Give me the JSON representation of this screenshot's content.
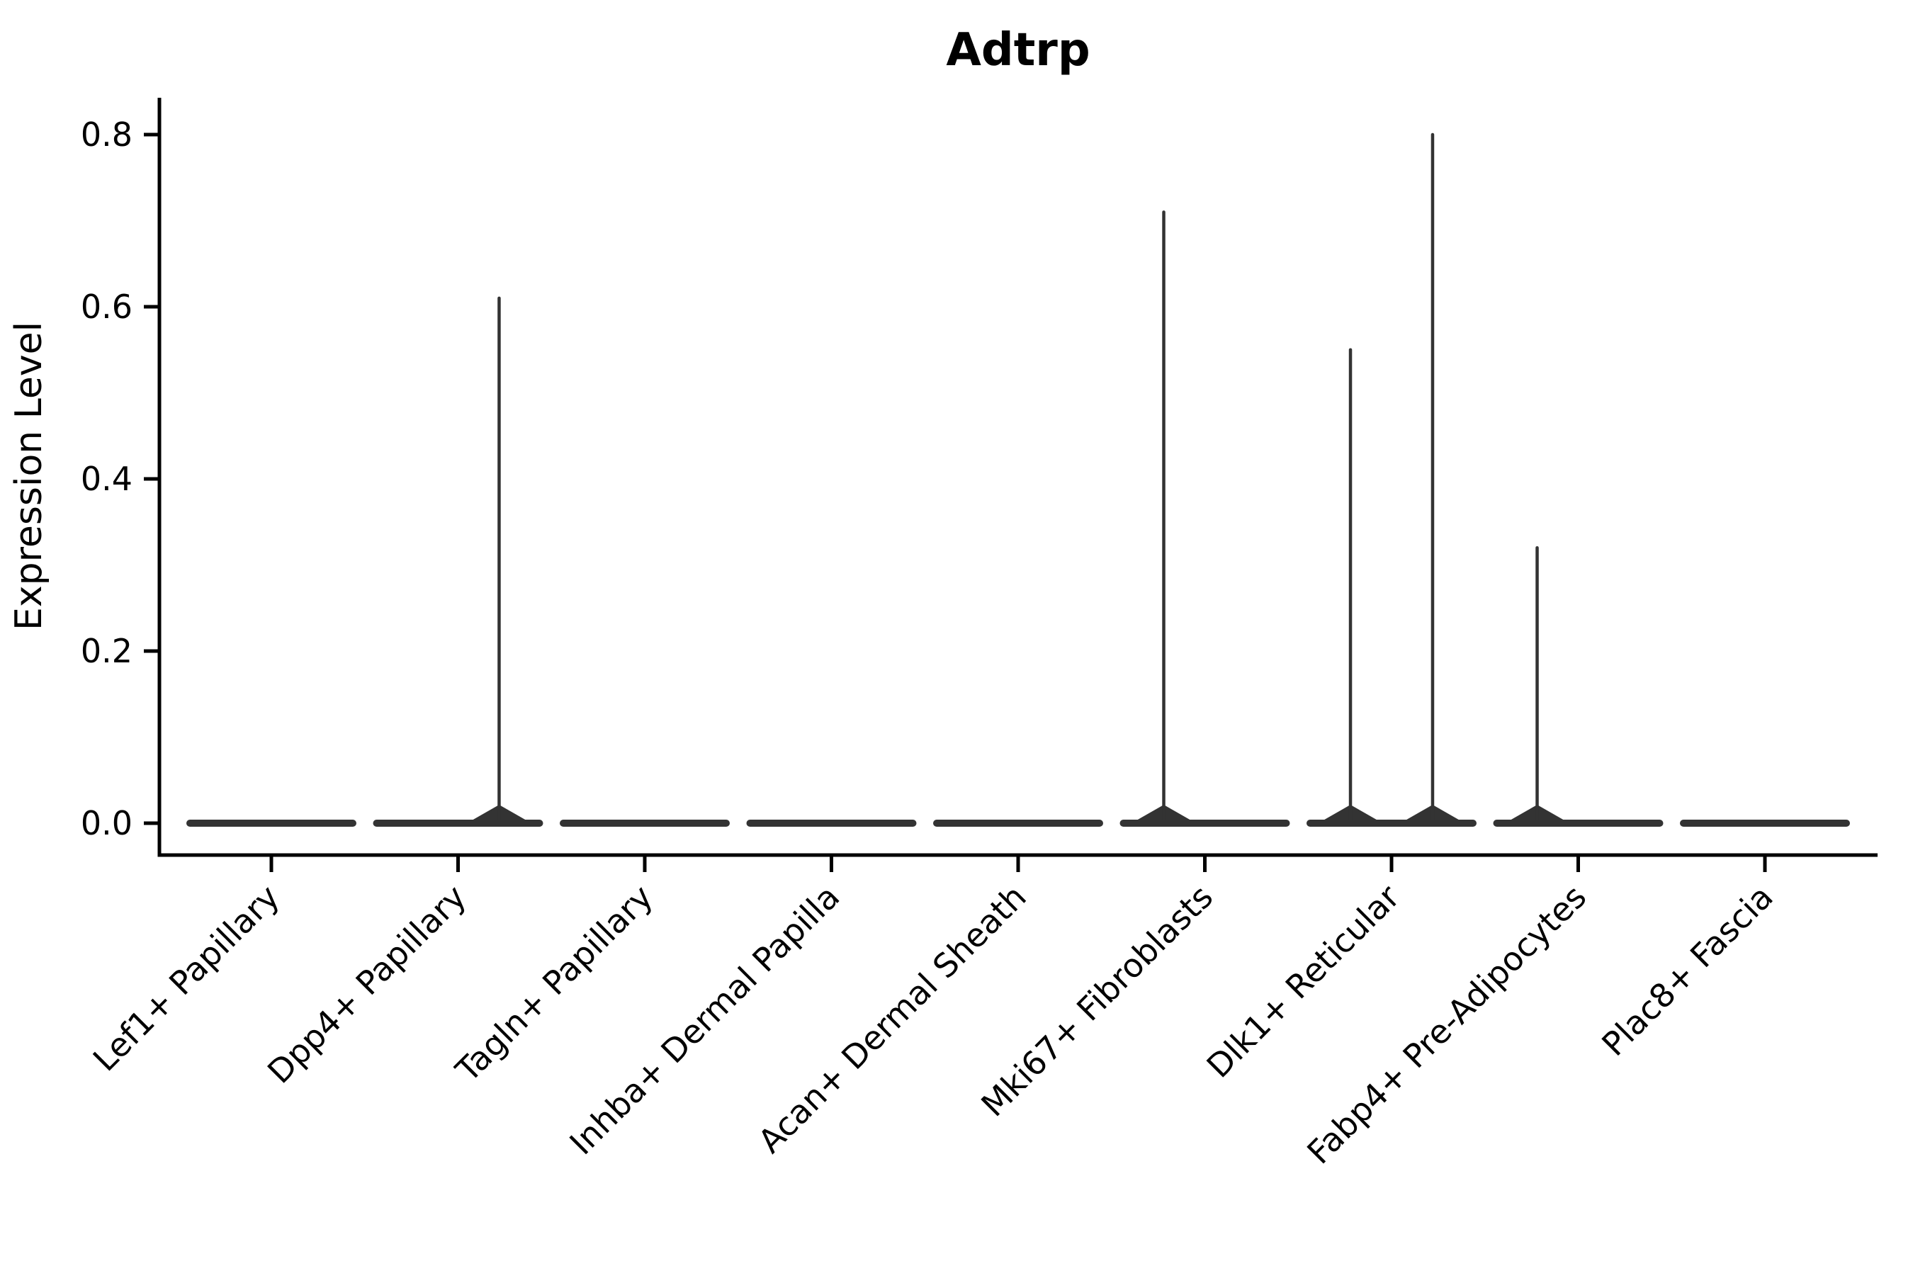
{
  "figure": {
    "background_color": "#ffffff",
    "axis_color": "#000000",
    "violin_color": "#333333",
    "text_color": "#000000"
  },
  "chart_data": {
    "type": "violin",
    "title": "Adtrp",
    "xlabel": "",
    "ylabel": "Expression Level",
    "ylim": [
      -0.04,
      0.84
    ],
    "yticks": [
      0.0,
      0.2,
      0.4,
      0.6,
      0.8
    ],
    "ytick_labels": [
      "0.0",
      "0.2",
      "0.4",
      "0.6",
      "0.8"
    ],
    "grid": "off",
    "legend": "none",
    "categories": [
      "Lef1+ Papillary",
      "Dpp4+ Papillary",
      "Tagln+ Papillary",
      "Inhba+ Dermal Papilla",
      "Acan+ Dermal Sheath",
      "Mki67+ Fibroblasts",
      "Dlk1+ Reticular",
      "Fabp4+ Pre-Adipocytes",
      "Plac8+ Fascia"
    ],
    "violins": [
      {
        "category": "Lef1+ Papillary",
        "base_value": 0.0,
        "spikes": []
      },
      {
        "category": "Dpp4+ Papillary",
        "base_value": 0.0,
        "spikes": [
          {
            "offset_frac": 0.22,
            "max": 0.61
          }
        ]
      },
      {
        "category": "Tagln+ Papillary",
        "base_value": 0.0,
        "spikes": []
      },
      {
        "category": "Inhba+ Dermal Papilla",
        "base_value": 0.0,
        "spikes": []
      },
      {
        "category": "Acan+ Dermal Sheath",
        "base_value": 0.0,
        "spikes": []
      },
      {
        "category": "Mki67+ Fibroblasts",
        "base_value": 0.0,
        "spikes": [
          {
            "offset_frac": -0.22,
            "max": 0.71
          }
        ]
      },
      {
        "category": "Dlk1+ Reticular",
        "base_value": 0.0,
        "spikes": [
          {
            "offset_frac": -0.22,
            "max": 0.55
          },
          {
            "offset_frac": 0.22,
            "max": 0.8
          }
        ]
      },
      {
        "category": "Fabp4+ Pre-Adipocytes",
        "base_value": 0.0,
        "spikes": [
          {
            "offset_frac": -0.22,
            "max": 0.32
          }
        ]
      },
      {
        "category": "Plac8+ Fascia",
        "base_value": 0.0,
        "spikes": []
      }
    ]
  }
}
